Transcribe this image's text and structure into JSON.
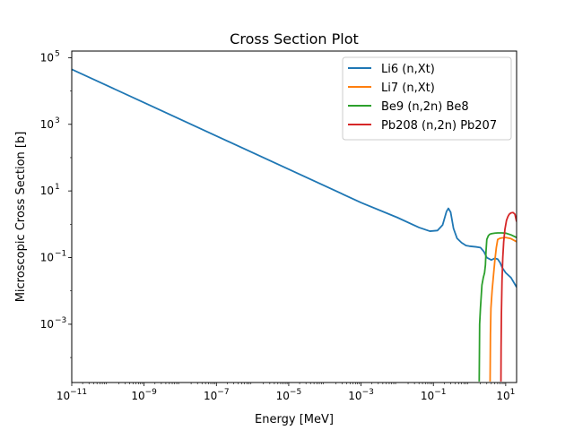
{
  "chart_data": {
    "type": "line",
    "title": "Cross Section Plot",
    "xlabel": "Energy [MeV]",
    "ylabel": "Microscopic Cross Section [b]",
    "xscale": "log",
    "yscale": "log",
    "xlim": [
      1e-11,
      20
    ],
    "ylim": [
      1.778e-05,
      158000.0
    ],
    "x_ticks": [
      {
        "value": 1e-11,
        "base": "10",
        "exp": "−11"
      },
      {
        "value": 1e-09,
        "base": "10",
        "exp": "−9"
      },
      {
        "value": 1e-07,
        "base": "10",
        "exp": "−7"
      },
      {
        "value": 1e-05,
        "base": "10",
        "exp": "−5"
      },
      {
        "value": 0.001,
        "base": "10",
        "exp": "−3"
      },
      {
        "value": 0.1,
        "base": "10",
        "exp": "−1"
      },
      {
        "value": 10.0,
        "base": "10",
        "exp": "1"
      }
    ],
    "y_ticks": [
      {
        "value": 0.001,
        "base": "10",
        "exp": "−3"
      },
      {
        "value": 0.1,
        "base": "10",
        "exp": "−1"
      },
      {
        "value": 10.0,
        "base": "10",
        "exp": "1"
      },
      {
        "value": 1000.0,
        "base": "10",
        "exp": "3"
      },
      {
        "value": 100000.0,
        "base": "10",
        "exp": "5"
      }
    ],
    "grid": false,
    "legend_position": "top-right",
    "series": [
      {
        "name": "Li6 (n,Xt)",
        "color": "#1f77b4",
        "x": [
          1e-11,
          1e-09,
          1e-07,
          1e-05,
          0.001,
          0.01,
          0.04,
          0.08,
          0.13,
          0.18,
          0.23,
          0.26,
          0.3,
          0.36,
          0.45,
          0.6,
          0.8,
          1.0,
          1.5,
          2.0,
          2.5,
          3.0,
          4.0,
          5.0,
          6.0,
          7.0,
          8.0,
          10.0,
          14.0,
          20.0
        ],
        "y": [
          44720,
          4472,
          447.2,
          44.72,
          4.47,
          1.6,
          0.8,
          0.62,
          0.65,
          0.95,
          2.4,
          3.0,
          2.3,
          0.75,
          0.38,
          0.28,
          0.23,
          0.22,
          0.21,
          0.2,
          0.15,
          0.1,
          0.085,
          0.095,
          0.09,
          0.07,
          0.05,
          0.035,
          0.025,
          0.013
        ]
      },
      {
        "name": "Li7 (n,Xt)",
        "color": "#ff7f0e",
        "x": [
          3.7,
          3.78,
          3.9,
          4.2,
          4.6,
          5.0,
          5.5,
          6.0,
          7.0,
          8.0,
          10.0,
          14.0,
          20.0
        ],
        "y": [
          1.9e-05,
          0.0005,
          0.003,
          0.01,
          0.03,
          0.08,
          0.2,
          0.35,
          0.38,
          0.39,
          0.4,
          0.37,
          0.3
        ]
      },
      {
        "name": "Be9 (n,2n) Be8",
        "color": "#2ca02c",
        "x": [
          1.85,
          1.9,
          2.0,
          2.2,
          2.4,
          2.6,
          2.75,
          2.85,
          3.0,
          3.3,
          3.6,
          4.0,
          5.0,
          6.0,
          8.0,
          10.0,
          14.0,
          20.0
        ],
        "y": [
          1.9e-05,
          0.001,
          0.003,
          0.015,
          0.025,
          0.035,
          0.06,
          0.15,
          0.35,
          0.45,
          0.5,
          0.52,
          0.54,
          0.55,
          0.55,
          0.54,
          0.48,
          0.4
        ]
      },
      {
        "name": "Pb208 (n,2n) Pb207",
        "color": "#d62728",
        "x": [
          7.38,
          7.45,
          7.6,
          7.9,
          8.3,
          8.8,
          9.5,
          10.5,
          11.5,
          12.5,
          14.0,
          16.0,
          18.0,
          20.0
        ],
        "y": [
          1.9e-05,
          0.0002,
          0.002,
          0.02,
          0.1,
          0.3,
          0.7,
          1.3,
          1.7,
          2.0,
          2.2,
          2.25,
          2.0,
          1.2
        ]
      }
    ]
  }
}
